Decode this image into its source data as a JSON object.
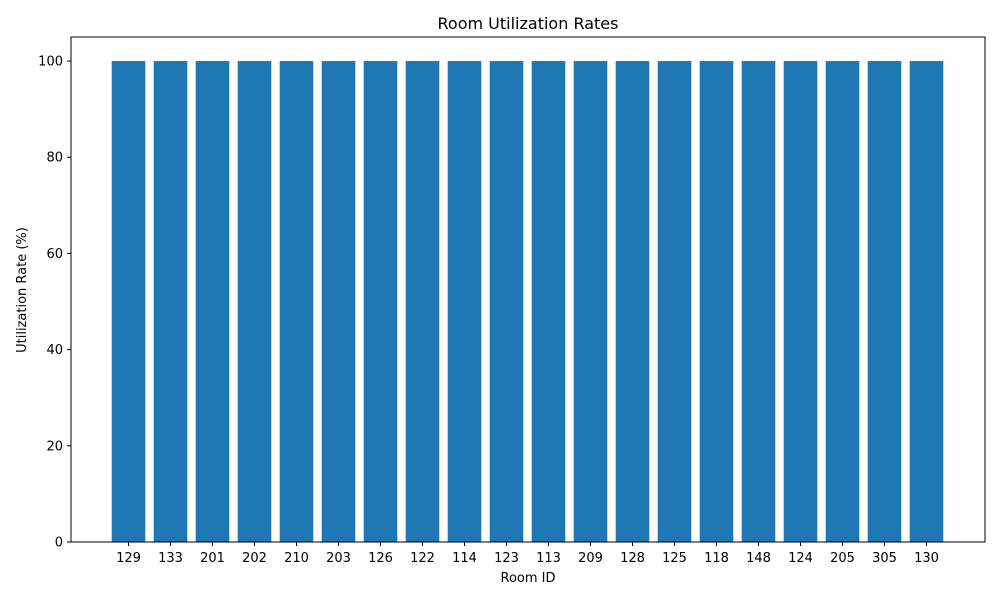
{
  "chart_data": {
    "type": "bar",
    "title": "Room Utilization Rates",
    "xlabel": "Room ID",
    "ylabel": "Utilization Rate (%)",
    "categories": [
      "129",
      "133",
      "201",
      "202",
      "210",
      "203",
      "126",
      "122",
      "114",
      "123",
      "113",
      "209",
      "128",
      "125",
      "118",
      "148",
      "124",
      "205",
      "305",
      "130"
    ],
    "values": [
      100,
      100,
      100,
      100,
      100,
      100,
      100,
      100,
      100,
      100,
      100,
      100,
      100,
      100,
      100,
      100,
      100,
      100,
      100,
      100
    ],
    "ylim": [
      0,
      105
    ],
    "yticks": [
      0,
      20,
      40,
      60,
      80,
      100
    ],
    "grid": false,
    "legend": false,
    "bar_color": "#1f77b4"
  }
}
